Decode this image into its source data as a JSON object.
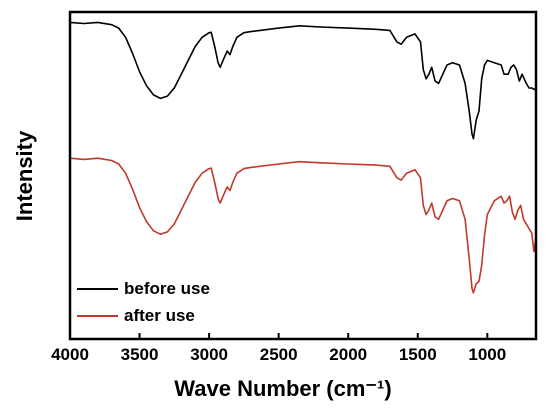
{
  "chart_data": {
    "type": "line",
    "title": "",
    "xlabel": "Wave Number (cm⁻¹)",
    "ylabel": "Intensity",
    "xlim": [
      4000,
      650
    ],
    "x_reversed": true,
    "y_ticks_shown": false,
    "xticks": [
      4000,
      3500,
      3000,
      2500,
      2000,
      1500,
      1000
    ],
    "legend_position": "bottom-left",
    "grid": false,
    "series": [
      {
        "name": "before use",
        "color": "#000000",
        "offset": 0.59,
        "points": [
          [
            4000,
            0.985
          ],
          [
            3900,
            0.98
          ],
          [
            3800,
            0.985
          ],
          [
            3700,
            0.975
          ],
          [
            3650,
            0.96
          ],
          [
            3600,
            0.92
          ],
          [
            3550,
            0.85
          ],
          [
            3500,
            0.77
          ],
          [
            3450,
            0.71
          ],
          [
            3400,
            0.67
          ],
          [
            3350,
            0.655
          ],
          [
            3300,
            0.665
          ],
          [
            3250,
            0.7
          ],
          [
            3200,
            0.76
          ],
          [
            3150,
            0.82
          ],
          [
            3100,
            0.88
          ],
          [
            3050,
            0.92
          ],
          [
            3000,
            0.94
          ],
          [
            2985,
            0.942
          ],
          [
            2960,
            0.88
          ],
          [
            2935,
            0.81
          ],
          [
            2920,
            0.79
          ],
          [
            2900,
            0.82
          ],
          [
            2870,
            0.86
          ],
          [
            2850,
            0.845
          ],
          [
            2830,
            0.88
          ],
          [
            2800,
            0.92
          ],
          [
            2750,
            0.94
          ],
          [
            2700,
            0.945
          ],
          [
            2500,
            0.96
          ],
          [
            2350,
            0.97
          ],
          [
            2200,
            0.965
          ],
          [
            2000,
            0.96
          ],
          [
            1800,
            0.955
          ],
          [
            1700,
            0.95
          ],
          [
            1650,
            0.9
          ],
          [
            1620,
            0.89
          ],
          [
            1580,
            0.92
          ],
          [
            1520,
            0.935
          ],
          [
            1480,
            0.9
          ],
          [
            1460,
            0.78
          ],
          [
            1440,
            0.74
          ],
          [
            1420,
            0.76
          ],
          [
            1400,
            0.79
          ],
          [
            1375,
            0.73
          ],
          [
            1350,
            0.72
          ],
          [
            1320,
            0.76
          ],
          [
            1290,
            0.8
          ],
          [
            1250,
            0.81
          ],
          [
            1200,
            0.8
          ],
          [
            1160,
            0.72
          ],
          [
            1130,
            0.6
          ],
          [
            1110,
            0.5
          ],
          [
            1100,
            0.48
          ],
          [
            1080,
            0.56
          ],
          [
            1060,
            0.6
          ],
          [
            1040,
            0.74
          ],
          [
            1020,
            0.8
          ],
          [
            1000,
            0.82
          ],
          [
            950,
            0.81
          ],
          [
            900,
            0.8
          ],
          [
            880,
            0.76
          ],
          [
            850,
            0.76
          ],
          [
            830,
            0.79
          ],
          [
            810,
            0.8
          ],
          [
            790,
            0.78
          ],
          [
            770,
            0.73
          ],
          [
            750,
            0.76
          ],
          [
            720,
            0.72
          ],
          [
            700,
            0.7
          ],
          [
            680,
            0.7
          ],
          [
            650,
            0.69
          ]
        ]
      },
      {
        "name": "after use",
        "color": "#c0392b",
        "offset": 0.0,
        "points": [
          [
            4000,
            0.985
          ],
          [
            3900,
            0.98
          ],
          [
            3800,
            0.985
          ],
          [
            3700,
            0.975
          ],
          [
            3650,
            0.96
          ],
          [
            3600,
            0.92
          ],
          [
            3550,
            0.85
          ],
          [
            3500,
            0.77
          ],
          [
            3450,
            0.71
          ],
          [
            3400,
            0.67
          ],
          [
            3350,
            0.655
          ],
          [
            3300,
            0.665
          ],
          [
            3250,
            0.7
          ],
          [
            3200,
            0.76
          ],
          [
            3150,
            0.82
          ],
          [
            3100,
            0.88
          ],
          [
            3050,
            0.92
          ],
          [
            3000,
            0.94
          ],
          [
            2985,
            0.942
          ],
          [
            2960,
            0.88
          ],
          [
            2935,
            0.81
          ],
          [
            2920,
            0.79
          ],
          [
            2900,
            0.82
          ],
          [
            2870,
            0.86
          ],
          [
            2850,
            0.845
          ],
          [
            2830,
            0.88
          ],
          [
            2800,
            0.92
          ],
          [
            2750,
            0.94
          ],
          [
            2700,
            0.945
          ],
          [
            2500,
            0.96
          ],
          [
            2350,
            0.97
          ],
          [
            2200,
            0.965
          ],
          [
            2000,
            0.96
          ],
          [
            1800,
            0.955
          ],
          [
            1700,
            0.95
          ],
          [
            1650,
            0.9
          ],
          [
            1620,
            0.89
          ],
          [
            1580,
            0.92
          ],
          [
            1520,
            0.935
          ],
          [
            1480,
            0.9
          ],
          [
            1460,
            0.78
          ],
          [
            1440,
            0.74
          ],
          [
            1420,
            0.76
          ],
          [
            1400,
            0.79
          ],
          [
            1375,
            0.73
          ],
          [
            1350,
            0.72
          ],
          [
            1320,
            0.76
          ],
          [
            1290,
            0.8
          ],
          [
            1250,
            0.81
          ],
          [
            1200,
            0.8
          ],
          [
            1160,
            0.72
          ],
          [
            1130,
            0.55
          ],
          [
            1110,
            0.42
          ],
          [
            1100,
            0.4
          ],
          [
            1080,
            0.44
          ],
          [
            1060,
            0.45
          ],
          [
            1040,
            0.52
          ],
          [
            1020,
            0.65
          ],
          [
            1000,
            0.74
          ],
          [
            950,
            0.8
          ],
          [
            900,
            0.82
          ],
          [
            880,
            0.79
          ],
          [
            860,
            0.8
          ],
          [
            840,
            0.82
          ],
          [
            820,
            0.75
          ],
          [
            800,
            0.72
          ],
          [
            780,
            0.76
          ],
          [
            760,
            0.78
          ],
          [
            740,
            0.72
          ],
          [
            720,
            0.7
          ],
          [
            700,
            0.68
          ],
          [
            680,
            0.66
          ],
          [
            665,
            0.58
          ],
          [
            650,
            0.64
          ]
        ]
      }
    ]
  }
}
